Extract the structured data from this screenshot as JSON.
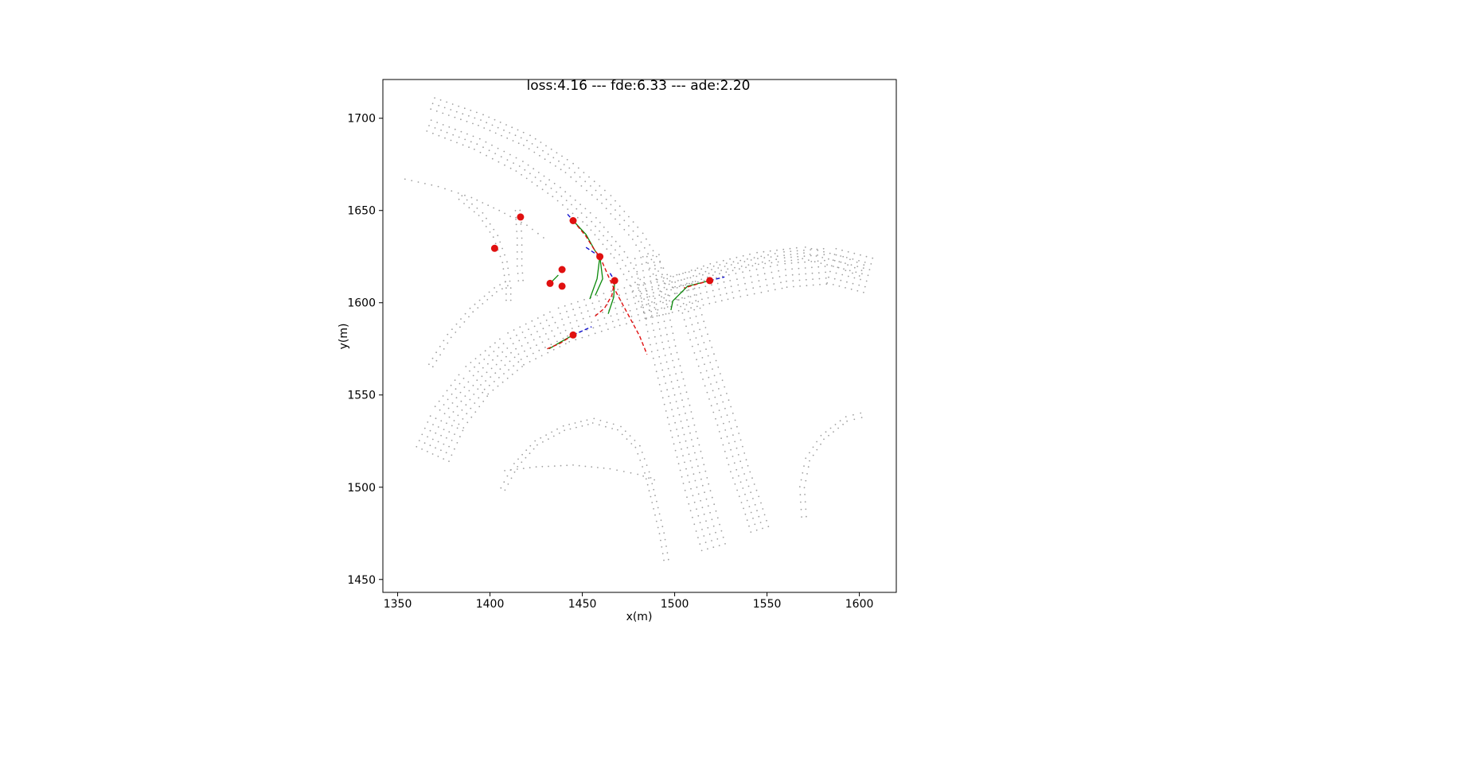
{
  "chart_data": {
    "type": "scatter",
    "title": "loss:4.16 --- fde:6.33 --- ade:2.20",
    "xlabel": "x(m)",
    "ylabel": "y(m)",
    "xlim": [
      1342,
      1620
    ],
    "ylim": [
      1443,
      1721
    ],
    "xticks": [
      1350,
      1400,
      1450,
      1500,
      1550,
      1600
    ],
    "yticks": [
      1450,
      1500,
      1550,
      1600,
      1650,
      1700
    ],
    "grid": false,
    "legend": "none",
    "colors": {
      "lane_points": "#a0a0a0",
      "agents": "#e01010",
      "history": "#1010d0",
      "ground_truth": "#e01010",
      "prediction": "#0a8a0a"
    },
    "lanes": [
      {
        "name": "lane-upper-arc-outer",
        "points": [
          [
            1369,
            1708
          ],
          [
            1395,
            1699
          ],
          [
            1420,
            1688
          ],
          [
            1443,
            1673
          ],
          [
            1463,
            1656
          ],
          [
            1480,
            1636
          ],
          [
            1493,
            1614
          ],
          [
            1500,
            1597
          ]
        ],
        "rows": 3,
        "gap": 3.2
      },
      {
        "name": "lane-upper-arc-inner",
        "points": [
          [
            1367,
            1696
          ],
          [
            1393,
            1686
          ],
          [
            1416,
            1674
          ],
          [
            1436,
            1660
          ],
          [
            1455,
            1644
          ],
          [
            1470,
            1626
          ],
          [
            1482,
            1605
          ],
          [
            1489,
            1590
          ]
        ],
        "rows": 3,
        "gap": 3.2
      },
      {
        "name": "lane-left-fan-top",
        "points": [
          [
            1354,
            1667
          ],
          [
            1372,
            1663
          ],
          [
            1390,
            1657
          ],
          [
            1405,
            1650
          ],
          [
            1420,
            1642
          ],
          [
            1432,
            1633
          ]
        ],
        "rows": 1,
        "gap": 0
      },
      {
        "name": "lane-left-fan-inner",
        "points": [
          [
            1384,
            1657
          ],
          [
            1395,
            1648
          ],
          [
            1403,
            1636
          ],
          [
            1408,
            1622
          ],
          [
            1410,
            1608
          ],
          [
            1410,
            1598
          ]
        ],
        "rows": 2,
        "gap": 2.5
      },
      {
        "name": "lane-left-fan-curve",
        "points": [
          [
            1368,
            1566
          ],
          [
            1378,
            1582
          ],
          [
            1390,
            1596
          ],
          [
            1403,
            1607
          ],
          [
            1412,
            1612
          ]
        ],
        "rows": 2,
        "gap": 2.5
      },
      {
        "name": "lane-left-fan-vertical",
        "points": [
          [
            1415,
            1650
          ],
          [
            1416,
            1635
          ],
          [
            1416,
            1620
          ],
          [
            1417,
            1608
          ]
        ],
        "rows": 2,
        "gap": 2.5
      },
      {
        "name": "lane-lower-sweep",
        "points": [
          [
            1369,
            1518
          ],
          [
            1378,
            1538
          ],
          [
            1393,
            1558
          ],
          [
            1414,
            1575
          ],
          [
            1440,
            1588
          ],
          [
            1468,
            1597
          ],
          [
            1500,
            1605
          ],
          [
            1530,
            1612
          ],
          [
            1560,
            1618
          ],
          [
            1585,
            1620
          ],
          [
            1608,
            1614
          ]
        ],
        "rows": 7,
        "gap": 3.2
      },
      {
        "name": "lane-right-upper",
        "points": [
          [
            1497,
            1610
          ],
          [
            1520,
            1618
          ],
          [
            1545,
            1624
          ],
          [
            1570,
            1627
          ],
          [
            1590,
            1622
          ],
          [
            1605,
            1616
          ]
        ],
        "rows": 3,
        "gap": 3.2
      },
      {
        "name": "lane-vertical-road",
        "points": [
          [
            1485,
            1625
          ],
          [
            1489,
            1600
          ],
          [
            1494,
            1575
          ],
          [
            1500,
            1550
          ],
          [
            1506,
            1525
          ],
          [
            1512,
            1500
          ],
          [
            1518,
            1478
          ],
          [
            1522,
            1464
          ]
        ],
        "rows": 5,
        "gap": 3.3
      },
      {
        "name": "lane-vertical-road-right",
        "points": [
          [
            1505,
            1610
          ],
          [
            1512,
            1585
          ],
          [
            1520,
            1560
          ],
          [
            1528,
            1535
          ],
          [
            1535,
            1510
          ],
          [
            1542,
            1490
          ],
          [
            1547,
            1474
          ]
        ],
        "rows": 4,
        "gap": 3.3
      },
      {
        "name": "lane-lower-left-arc",
        "points": [
          [
            1407,
            1499
          ],
          [
            1414,
            1512
          ],
          [
            1425,
            1524
          ],
          [
            1440,
            1532
          ],
          [
            1456,
            1536
          ],
          [
            1470,
            1532
          ],
          [
            1480,
            1522
          ],
          [
            1485,
            1508
          ],
          [
            1489,
            1492
          ],
          [
            1493,
            1475
          ],
          [
            1496,
            1457
          ]
        ],
        "rows": 2,
        "gap": 2.5
      },
      {
        "name": "lane-lower-flat",
        "points": [
          [
            1408,
            1509
          ],
          [
            1425,
            1511
          ],
          [
            1445,
            1512
          ],
          [
            1465,
            1510
          ],
          [
            1480,
            1507
          ],
          [
            1492,
            1503
          ]
        ],
        "rows": 1,
        "gap": 0
      },
      {
        "name": "lane-right-small-arc",
        "points": [
          [
            1570,
            1484
          ],
          [
            1569,
            1500
          ],
          [
            1572,
            1515
          ],
          [
            1580,
            1527
          ],
          [
            1593,
            1537
          ],
          [
            1605,
            1540
          ]
        ],
        "rows": 2,
        "gap": 2.5
      }
    ],
    "agents": [
      {
        "x": 1416.5,
        "y": 1646.5
      },
      {
        "x": 1402.5,
        "y": 1629.5
      },
      {
        "x": 1445,
        "y": 1644.5
      },
      {
        "x": 1459.5,
        "y": 1625
      },
      {
        "x": 1439,
        "y": 1618
      },
      {
        "x": 1432.5,
        "y": 1610.5
      },
      {
        "x": 1439,
        "y": 1609
      },
      {
        "x": 1467.5,
        "y": 1612
      },
      {
        "x": 1519,
        "y": 1612
      },
      {
        "x": 1445,
        "y": 1582.5
      }
    ],
    "history": [
      [
        [
          1442,
          1648
        ],
        [
          1445,
          1644.5
        ]
      ],
      [
        [
          1452,
          1630
        ],
        [
          1459.5,
          1625
        ]
      ],
      [
        [
          1519,
          1612
        ],
        [
          1527,
          1614
        ]
      ],
      [
        [
          1445,
          1582.5
        ],
        [
          1455,
          1587
        ]
      ],
      [
        [
          1465,
          1616
        ],
        [
          1467.5,
          1612
        ]
      ]
    ],
    "ground_truth": [
      [
        [
          1445,
          1644.5
        ],
        [
          1452,
          1636
        ],
        [
          1457,
          1628
        ],
        [
          1459.5,
          1625
        ]
      ],
      [
        [
          1459.5,
          1625
        ],
        [
          1466,
          1610
        ],
        [
          1474,
          1595
        ],
        [
          1481,
          1582
        ],
        [
          1485,
          1572
        ]
      ],
      [
        [
          1467.5,
          1612
        ],
        [
          1466,
          1604
        ],
        [
          1462,
          1597
        ],
        [
          1456,
          1592
        ]
      ],
      [
        [
          1445,
          1582.5
        ],
        [
          1438,
          1578
        ],
        [
          1431,
          1575
        ]
      ],
      [
        [
          1519,
          1612
        ],
        [
          1512,
          1610
        ],
        [
          1505,
          1608
        ]
      ]
    ],
    "predictions": [
      [
        [
          1445,
          1644.5
        ],
        [
          1452,
          1637
        ],
        [
          1457,
          1628
        ],
        [
          1459.5,
          1625
        ]
      ],
      [
        [
          1459.5,
          1625
        ],
        [
          1458,
          1613
        ],
        [
          1454,
          1602
        ]
      ],
      [
        [
          1459.5,
          1625
        ],
        [
          1461,
          1613
        ],
        [
          1457,
          1604
        ]
      ],
      [
        [
          1467.5,
          1612
        ],
        [
          1467,
          1603
        ],
        [
          1464,
          1594
        ]
      ],
      [
        [
          1519,
          1612
        ],
        [
          1507,
          1609
        ],
        [
          1499,
          1601
        ],
        [
          1498,
          1596
        ]
      ],
      [
        [
          1445,
          1582.5
        ],
        [
          1437,
          1578
        ],
        [
          1432,
          1575
        ]
      ],
      [
        [
          1432.5,
          1610.5
        ],
        [
          1437,
          1615
        ]
      ]
    ]
  }
}
